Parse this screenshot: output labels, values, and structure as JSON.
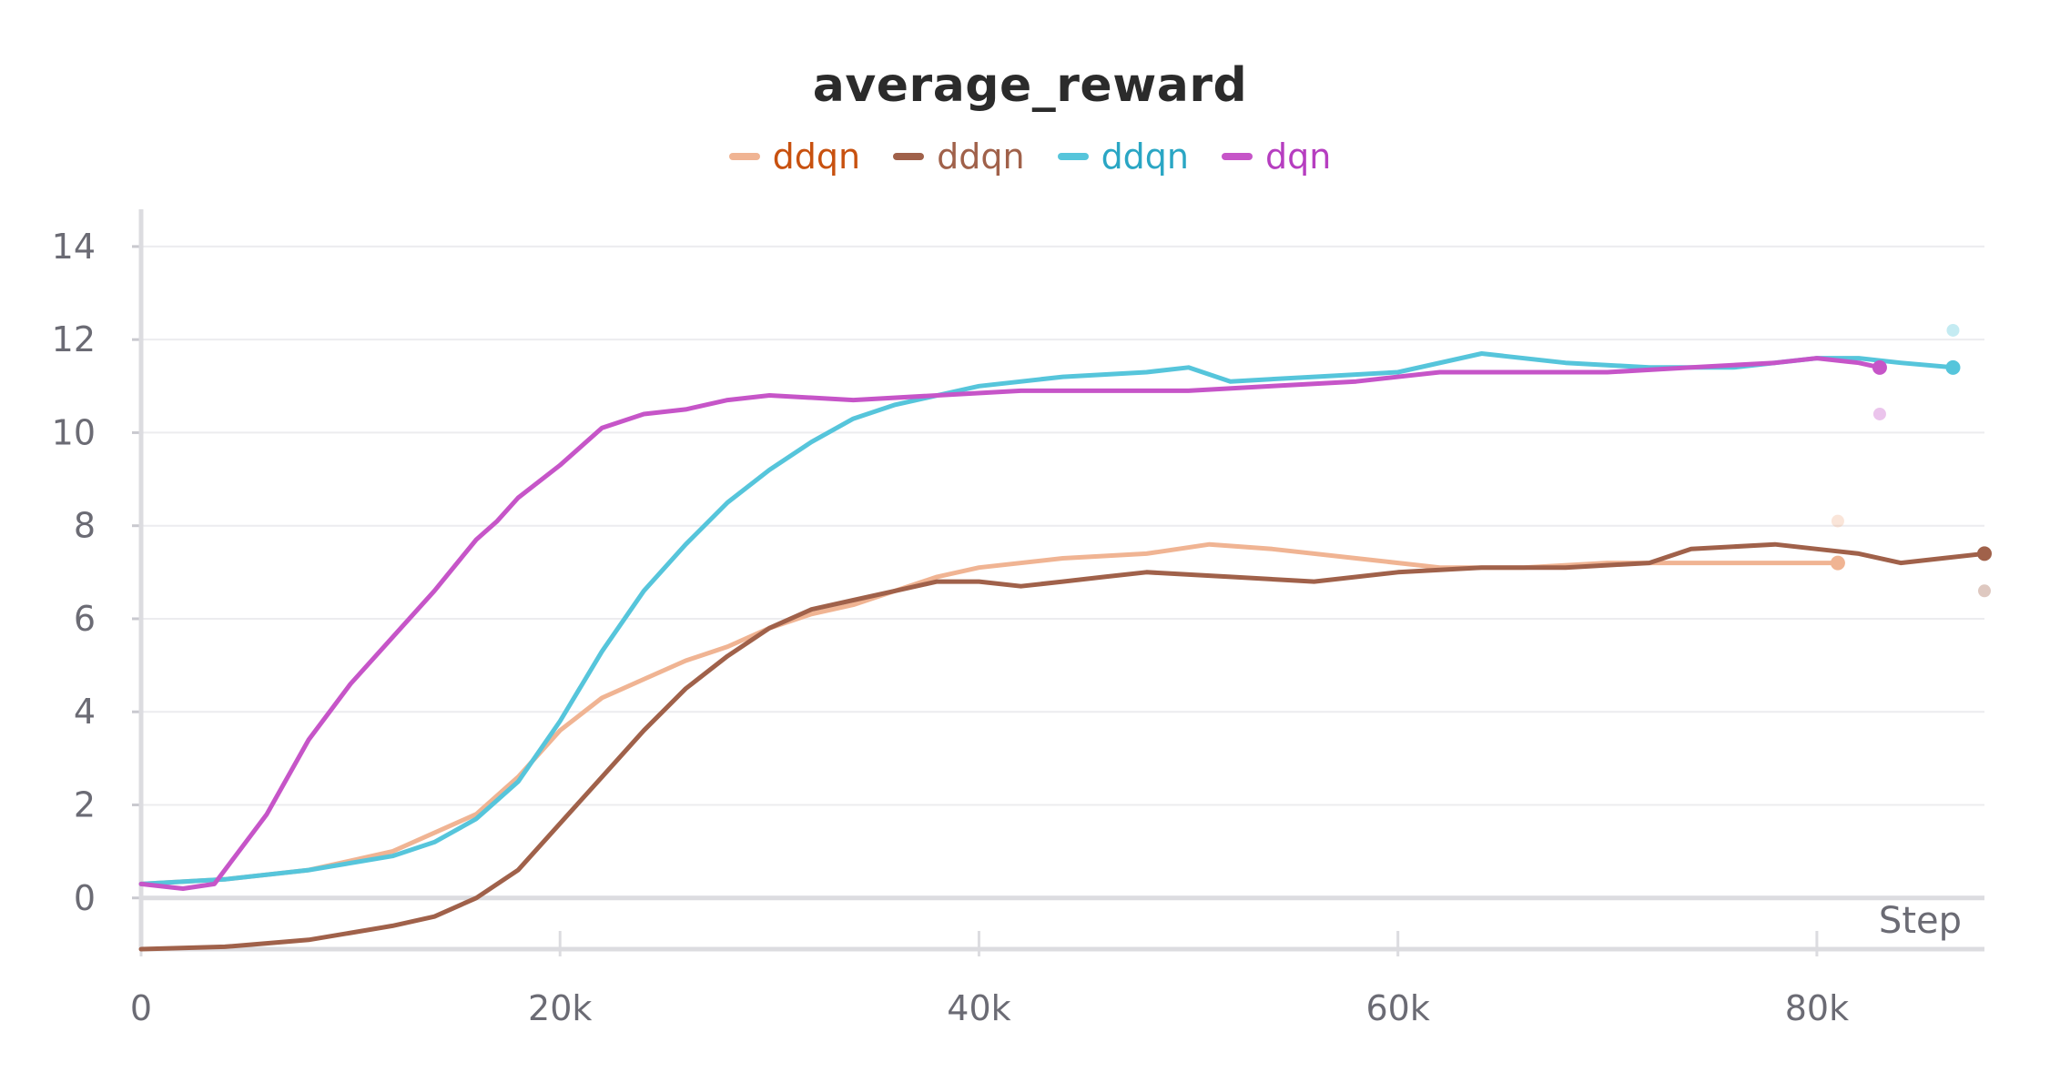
{
  "chart_data": {
    "type": "line",
    "title": "average_reward",
    "xlabel": "Step",
    "ylabel": "",
    "xlim": [
      0,
      88000
    ],
    "ylim": [
      -1.1,
      14.8
    ],
    "x_ticks": [
      0,
      20000,
      40000,
      60000,
      80000
    ],
    "x_tick_labels": [
      "0",
      "20k",
      "40k",
      "60k",
      "80k"
    ],
    "y_ticks": [
      0,
      2,
      4,
      6,
      8,
      10,
      12,
      14
    ],
    "y_tick_labels": [
      "0",
      "2",
      "4",
      "6",
      "8",
      "10",
      "12",
      "14"
    ],
    "grid": true,
    "legend_position": "top-center",
    "series": [
      {
        "name": "ddqn",
        "color": "#f0b493",
        "legend_text_color": "#c8510f",
        "x": [
          0,
          4000,
          8000,
          12000,
          16000,
          18000,
          20000,
          22000,
          24000,
          26000,
          28000,
          30000,
          32000,
          34000,
          36000,
          38000,
          40000,
          44000,
          48000,
          51000,
          54000,
          58000,
          62000,
          66000,
          70000,
          74000,
          78000,
          81000
        ],
        "values": [
          0.3,
          0.4,
          0.6,
          1.0,
          1.8,
          2.6,
          3.6,
          4.3,
          4.7,
          5.1,
          5.4,
          5.8,
          6.1,
          6.3,
          6.6,
          6.9,
          7.1,
          7.3,
          7.4,
          7.6,
          7.5,
          7.3,
          7.1,
          7.1,
          7.2,
          7.2,
          7.2,
          7.2
        ],
        "end_marker_value": 7.2,
        "raw_end_value": 8.1
      },
      {
        "name": "ddqn",
        "color": "#a0614a",
        "legend_text_color": "#a0614a",
        "x": [
          0,
          4000,
          8000,
          12000,
          14000,
          16000,
          18000,
          20000,
          22000,
          24000,
          26000,
          28000,
          30000,
          32000,
          34000,
          36000,
          38000,
          40000,
          42000,
          44000,
          46000,
          48000,
          52000,
          56000,
          60000,
          64000,
          68000,
          72000,
          74000,
          78000,
          80000,
          82000,
          84000,
          86000,
          88000
        ],
        "values": [
          -1.1,
          -1.05,
          -0.9,
          -0.6,
          -0.4,
          0.0,
          0.6,
          1.6,
          2.6,
          3.6,
          4.5,
          5.2,
          5.8,
          6.2,
          6.4,
          6.6,
          6.8,
          6.8,
          6.7,
          6.8,
          6.9,
          7.0,
          6.9,
          6.8,
          7.0,
          7.1,
          7.1,
          7.2,
          7.5,
          7.6,
          7.5,
          7.4,
          7.2,
          7.3,
          7.4
        ],
        "end_marker_value": 7.4,
        "raw_end_value": 6.6
      },
      {
        "name": "ddqn",
        "color": "#56c5db",
        "legend_text_color": "#2aa6c4",
        "x": [
          0,
          4000,
          8000,
          12000,
          14000,
          16000,
          18000,
          20000,
          22000,
          24000,
          26000,
          28000,
          30000,
          32000,
          34000,
          36000,
          40000,
          44000,
          48000,
          50000,
          52000,
          56000,
          60000,
          64000,
          68000,
          72000,
          76000,
          80000,
          82000,
          84000,
          86500
        ],
        "values": [
          0.3,
          0.4,
          0.6,
          0.9,
          1.2,
          1.7,
          2.5,
          3.8,
          5.3,
          6.6,
          7.6,
          8.5,
          9.2,
          9.8,
          10.3,
          10.6,
          11.0,
          11.2,
          11.3,
          11.4,
          11.1,
          11.2,
          11.3,
          11.7,
          11.5,
          11.4,
          11.4,
          11.6,
          11.6,
          11.5,
          11.4
        ],
        "end_marker_value": 11.4,
        "raw_end_value": 12.2
      },
      {
        "name": "dqn",
        "color": "#c655c8",
        "legend_text_color": "#b63ec0",
        "x": [
          0,
          2000,
          3500,
          6000,
          8000,
          10000,
          12000,
          14000,
          16000,
          17000,
          18000,
          20000,
          22000,
          24000,
          26000,
          28000,
          30000,
          34000,
          38000,
          42000,
          46000,
          50000,
          54000,
          58000,
          62000,
          66000,
          70000,
          74000,
          78000,
          80000,
          82000,
          83000
        ],
        "values": [
          0.3,
          0.2,
          0.3,
          1.8,
          3.4,
          4.6,
          5.6,
          6.6,
          7.7,
          8.1,
          8.6,
          9.3,
          10.1,
          10.4,
          10.5,
          10.7,
          10.8,
          10.7,
          10.8,
          10.9,
          10.9,
          10.9,
          11.0,
          11.1,
          11.3,
          11.3,
          11.3,
          11.4,
          11.5,
          11.6,
          11.5,
          11.4
        ],
        "end_marker_value": 11.4,
        "raw_end_value": 10.4
      }
    ]
  }
}
